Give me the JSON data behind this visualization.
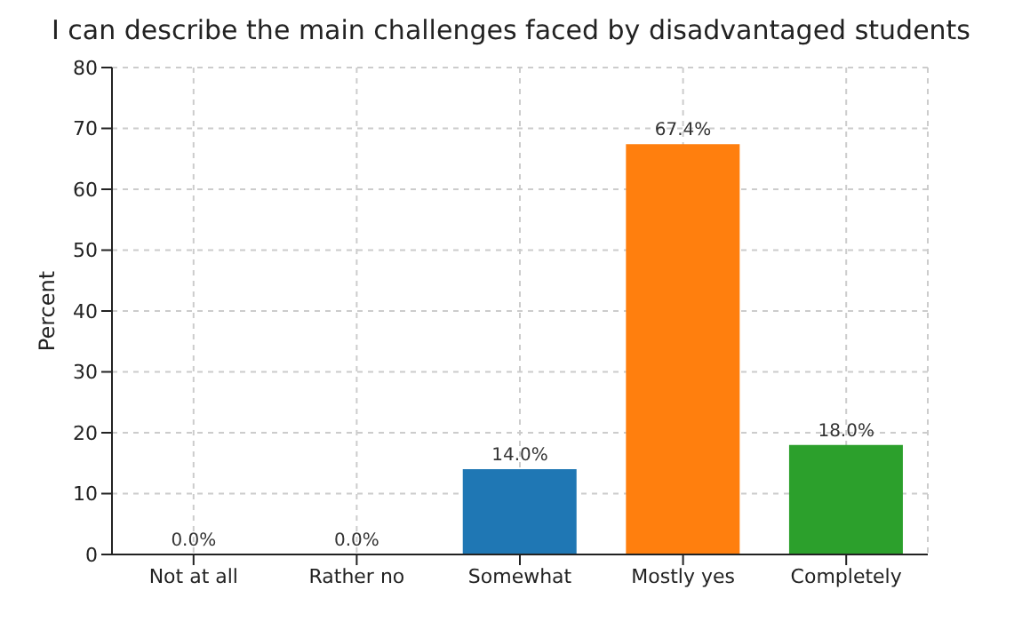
{
  "chart_data": {
    "type": "bar",
    "title": "I can describe the main challenges faced by disadvantaged students",
    "ylabel": "Percent",
    "categories": [
      "Not at all",
      "Rather no",
      "Somewhat",
      "Mostly yes",
      "Completely"
    ],
    "values": [
      0,
      0,
      14.0,
      67.4,
      18.0
    ],
    "colors": [
      "#1f77b4",
      "#1f77b4",
      "#1f77b4",
      "#ff7f0e",
      "#2ca02c"
    ],
    "value_labels": [
      "0.0%",
      "0.0%",
      "14.0%",
      "67.4%",
      "18.0%"
    ],
    "ylim": [
      0,
      80
    ],
    "yticks": [
      0,
      10,
      20,
      30,
      40,
      50,
      60,
      70,
      80
    ],
    "grid": true
  }
}
